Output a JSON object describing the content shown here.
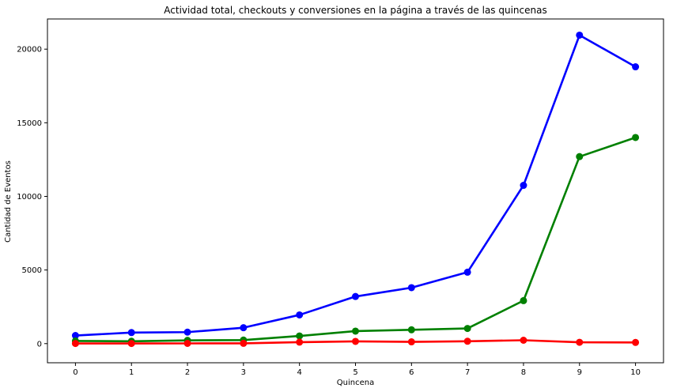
{
  "chart_data": {
    "type": "line",
    "title": "Actividad total, checkouts y conversiones en la página a través de las quincenas",
    "xlabel": "Quincena",
    "ylabel": "Cantidad de Eventos",
    "x": [
      0,
      1,
      2,
      3,
      4,
      5,
      6,
      7,
      8,
      9,
      10
    ],
    "x_ticks": [
      "0",
      "1",
      "2",
      "3",
      "4",
      "5",
      "6",
      "7",
      "8",
      "9",
      "10"
    ],
    "y_ticks": [
      "0",
      "5000",
      "10000",
      "15000",
      "20000"
    ],
    "xlim": [
      -0.5,
      10.5
    ],
    "ylim": [
      -1300,
      22050
    ],
    "grid": false,
    "series": [
      {
        "color": "#0000ff",
        "values": [
          550,
          750,
          780,
          1080,
          1950,
          3200,
          3800,
          4850,
          10750,
          20950,
          18800
        ]
      },
      {
        "color": "#008000",
        "values": [
          180,
          160,
          220,
          240,
          520,
          850,
          940,
          1030,
          2920,
          12700,
          14000
        ]
      },
      {
        "color": "#ff0000",
        "values": [
          10,
          10,
          15,
          20,
          100,
          150,
          120,
          160,
          230,
          90,
          80
        ]
      }
    ]
  }
}
